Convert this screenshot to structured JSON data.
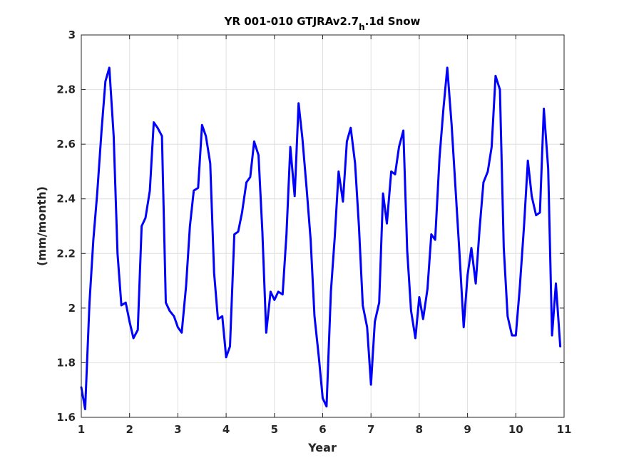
{
  "chart_data": {
    "type": "line",
    "title_main": "YR 001-010 GTJRAv2.7",
    "title_sub": "h",
    "title_rest": ".1d Snow",
    "xlabel": "Year",
    "ylabel": "(mm/month)",
    "xlim": [
      1,
      11
    ],
    "ylim": [
      1.6,
      3.0
    ],
    "x_ticks": [
      "1",
      "2",
      "3",
      "4",
      "5",
      "6",
      "7",
      "8",
      "9",
      "10",
      "11"
    ],
    "y_ticks": [
      "1.6",
      "1.8",
      "2",
      "2.2",
      "2.4",
      "2.6",
      "2.8",
      "3"
    ],
    "grid": true,
    "line_color": "#0000ff",
    "series": [
      {
        "values": [
          [
            1.0,
            1.71
          ],
          [
            1.08,
            1.63
          ],
          [
            1.17,
            2.02
          ],
          [
            1.25,
            2.25
          ],
          [
            1.33,
            2.42
          ],
          [
            1.42,
            2.65
          ],
          [
            1.5,
            2.83
          ],
          [
            1.58,
            2.88
          ],
          [
            1.67,
            2.63
          ],
          [
            1.75,
            2.2
          ],
          [
            1.83,
            2.01
          ],
          [
            1.92,
            2.02
          ],
          [
            2.0,
            1.95
          ],
          [
            2.08,
            1.89
          ],
          [
            2.17,
            1.92
          ],
          [
            2.25,
            2.3
          ],
          [
            2.33,
            2.33
          ],
          [
            2.42,
            2.43
          ],
          [
            2.5,
            2.68
          ],
          [
            2.58,
            2.66
          ],
          [
            2.67,
            2.63
          ],
          [
            2.75,
            2.02
          ],
          [
            2.83,
            1.99
          ],
          [
            2.92,
            1.97
          ],
          [
            3.0,
            1.93
          ],
          [
            3.08,
            1.91
          ],
          [
            3.17,
            2.08
          ],
          [
            3.25,
            2.3
          ],
          [
            3.33,
            2.43
          ],
          [
            3.42,
            2.44
          ],
          [
            3.5,
            2.67
          ],
          [
            3.58,
            2.63
          ],
          [
            3.67,
            2.53
          ],
          [
            3.75,
            2.13
          ],
          [
            3.83,
            1.96
          ],
          [
            3.92,
            1.97
          ],
          [
            4.0,
            1.82
          ],
          [
            4.08,
            1.86
          ],
          [
            4.17,
            2.27
          ],
          [
            4.25,
            2.28
          ],
          [
            4.33,
            2.35
          ],
          [
            4.42,
            2.46
          ],
          [
            4.5,
            2.48
          ],
          [
            4.58,
            2.61
          ],
          [
            4.67,
            2.56
          ],
          [
            4.75,
            2.28
          ],
          [
            4.83,
            1.91
          ],
          [
            4.92,
            2.06
          ],
          [
            5.0,
            2.03
          ],
          [
            5.08,
            2.06
          ],
          [
            5.17,
            2.05
          ],
          [
            5.25,
            2.27
          ],
          [
            5.33,
            2.59
          ],
          [
            5.42,
            2.41
          ],
          [
            5.5,
            2.75
          ],
          [
            5.58,
            2.62
          ],
          [
            5.67,
            2.43
          ],
          [
            5.75,
            2.25
          ],
          [
            5.83,
            1.97
          ],
          [
            5.92,
            1.82
          ],
          [
            6.0,
            1.67
          ],
          [
            6.08,
            1.64
          ],
          [
            6.17,
            2.06
          ],
          [
            6.25,
            2.26
          ],
          [
            6.33,
            2.5
          ],
          [
            6.42,
            2.39
          ],
          [
            6.5,
            2.61
          ],
          [
            6.58,
            2.66
          ],
          [
            6.67,
            2.53
          ],
          [
            6.75,
            2.3
          ],
          [
            6.83,
            2.01
          ],
          [
            6.92,
            1.93
          ],
          [
            7.0,
            1.72
          ],
          [
            7.08,
            1.95
          ],
          [
            7.17,
            2.02
          ],
          [
            7.25,
            2.42
          ],
          [
            7.33,
            2.31
          ],
          [
            7.42,
            2.5
          ],
          [
            7.5,
            2.49
          ],
          [
            7.58,
            2.59
          ],
          [
            7.67,
            2.65
          ],
          [
            7.75,
            2.21
          ],
          [
            7.83,
            1.99
          ],
          [
            7.92,
            1.89
          ],
          [
            8.0,
            2.04
          ],
          [
            8.08,
            1.96
          ],
          [
            8.17,
            2.07
          ],
          [
            8.25,
            2.27
          ],
          [
            8.33,
            2.25
          ],
          [
            8.42,
            2.55
          ],
          [
            8.5,
            2.73
          ],
          [
            8.58,
            2.88
          ],
          [
            8.67,
            2.67
          ],
          [
            8.75,
            2.44
          ],
          [
            8.83,
            2.21
          ],
          [
            8.92,
            1.93
          ],
          [
            9.0,
            2.12
          ],
          [
            9.08,
            2.22
          ],
          [
            9.17,
            2.09
          ],
          [
            9.25,
            2.29
          ],
          [
            9.33,
            2.46
          ],
          [
            9.42,
            2.5
          ],
          [
            9.5,
            2.59
          ],
          [
            9.58,
            2.85
          ],
          [
            9.67,
            2.8
          ],
          [
            9.75,
            2.22
          ],
          [
            9.83,
            1.97
          ],
          [
            9.92,
            1.9
          ],
          [
            10.0,
            1.9
          ],
          [
            10.08,
            2.07
          ],
          [
            10.17,
            2.3
          ],
          [
            10.25,
            2.54
          ],
          [
            10.33,
            2.41
          ],
          [
            10.42,
            2.34
          ],
          [
            10.5,
            2.35
          ],
          [
            10.58,
            2.73
          ],
          [
            10.67,
            2.51
          ],
          [
            10.75,
            1.9
          ],
          [
            10.83,
            2.09
          ],
          [
            10.92,
            1.86
          ]
        ]
      }
    ]
  }
}
